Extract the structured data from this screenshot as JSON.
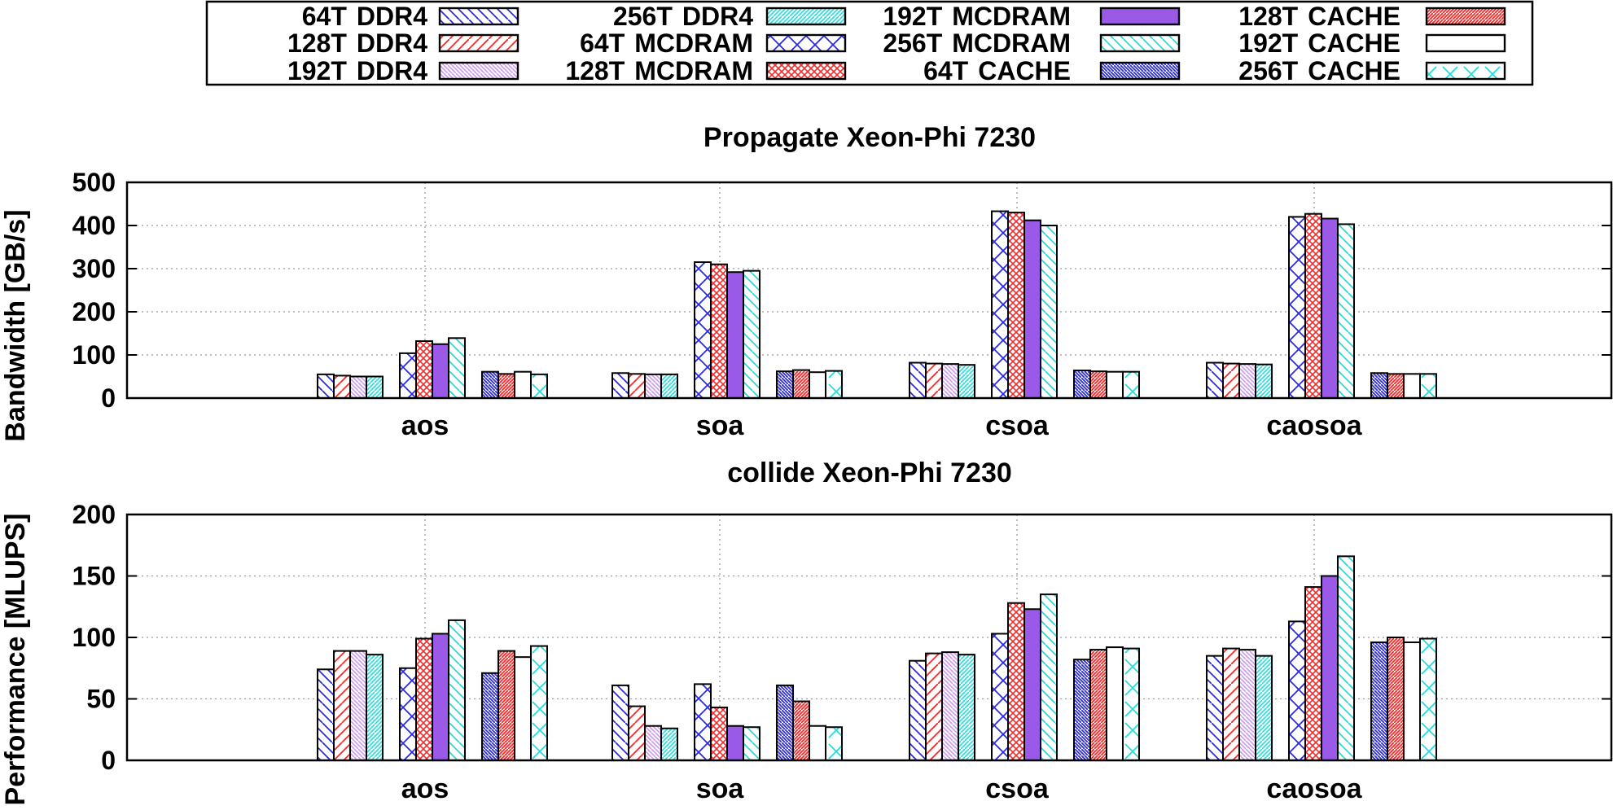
{
  "legend": [
    {
      "threads": "64T",
      "memory": "DDR4",
      "pattern": "diag-back",
      "color": "#2a2ae6",
      "fill": "#ffffff"
    },
    {
      "threads": "128T",
      "memory": "DDR4",
      "pattern": "diag-fwd",
      "color": "#ee2b2b",
      "fill": "#ffffff"
    },
    {
      "threads": "192T",
      "memory": "DDR4",
      "pattern": "diag-fine",
      "color": "#cc99ee",
      "fill": "#ffffff"
    },
    {
      "threads": "256T",
      "memory": "DDR4",
      "pattern": "diag-fine-fwd",
      "color": "#22dddd",
      "fill": "#ffffff"
    },
    {
      "threads": "64T",
      "memory": "MCDRAM",
      "pattern": "cross",
      "color": "#2a2ae6",
      "fill": "#ffffff"
    },
    {
      "threads": "128T",
      "memory": "MCDRAM",
      "pattern": "crosshatch-dense",
      "color": "#ee2b2b",
      "fill": "#ffffff"
    },
    {
      "threads": "192T",
      "memory": "MCDRAM",
      "pattern": "solid",
      "color": "#000000",
      "fill": "#9b59e8"
    },
    {
      "threads": "256T",
      "memory": "MCDRAM",
      "pattern": "diag-back",
      "color": "#22dddd",
      "fill": "#ffffff"
    },
    {
      "threads": "64T",
      "memory": "CACHE",
      "pattern": "diag-back-dense",
      "color": "#2a2ae6",
      "fill": "#ffffff"
    },
    {
      "threads": "128T",
      "memory": "CACHE",
      "pattern": "diag-fwd-dense",
      "color": "#ee2b2b",
      "fill": "#ffffff"
    },
    {
      "threads": "192T",
      "memory": "CACHE",
      "pattern": "none",
      "color": "#000000",
      "fill": "#ffffff"
    },
    {
      "threads": "256T",
      "memory": "CACHE",
      "pattern": "cross-sparse",
      "color": "#22dddd",
      "fill": "#ffffff"
    }
  ],
  "chart_data": [
    {
      "type": "bar",
      "title": "Propagate Xeon-Phi 7230",
      "xlabel": "",
      "ylabel": "Bandwidth [GB/s]",
      "ylim": [
        0,
        500
      ],
      "yticks": [
        0,
        100,
        200,
        300,
        400,
        500
      ],
      "grid": true,
      "categories": [
        "aos",
        "soa",
        "csoa",
        "caosoa"
      ],
      "series": [
        {
          "name": "64T DDR4",
          "values": [
            55,
            58,
            82,
            82
          ]
        },
        {
          "name": "128T DDR4",
          "values": [
            52,
            56,
            80,
            80
          ]
        },
        {
          "name": "192T DDR4",
          "values": [
            50,
            55,
            79,
            79
          ]
        },
        {
          "name": "256T DDR4",
          "values": [
            50,
            55,
            77,
            78
          ]
        },
        {
          "name": "64T MCDRAM",
          "values": [
            104,
            315,
            433,
            420
          ]
        },
        {
          "name": "128T MCDRAM",
          "values": [
            132,
            310,
            430,
            427
          ]
        },
        {
          "name": "192T MCDRAM",
          "values": [
            125,
            292,
            412,
            416
          ]
        },
        {
          "name": "256T MCDRAM",
          "values": [
            139,
            295,
            400,
            403
          ]
        },
        {
          "name": "64T CACHE",
          "values": [
            61,
            62,
            64,
            58
          ]
        },
        {
          "name": "128T CACHE",
          "values": [
            56,
            65,
            62,
            56
          ]
        },
        {
          "name": "192T CACHE",
          "values": [
            61,
            60,
            61,
            56
          ]
        },
        {
          "name": "256T CACHE",
          "values": [
            55,
            63,
            61,
            56
          ]
        }
      ]
    },
    {
      "type": "bar",
      "title": "collide Xeon-Phi 7230",
      "xlabel": "",
      "ylabel": "Performance [MLUPS]",
      "ylim": [
        0,
        200
      ],
      "yticks": [
        0,
        50,
        100,
        150,
        200
      ],
      "grid": true,
      "categories": [
        "aos",
        "soa",
        "csoa",
        "caosoa"
      ],
      "series": [
        {
          "name": "64T DDR4",
          "values": [
            74,
            61,
            81,
            85
          ]
        },
        {
          "name": "128T DDR4",
          "values": [
            89,
            44,
            87,
            91
          ]
        },
        {
          "name": "192T DDR4",
          "values": [
            89,
            28,
            88,
            90
          ]
        },
        {
          "name": "256T DDR4",
          "values": [
            86,
            26,
            86,
            85
          ]
        },
        {
          "name": "64T MCDRAM",
          "values": [
            75,
            62,
            103,
            113
          ]
        },
        {
          "name": "128T MCDRAM",
          "values": [
            99,
            43,
            128,
            141
          ]
        },
        {
          "name": "192T MCDRAM",
          "values": [
            103,
            28,
            123,
            150
          ]
        },
        {
          "name": "256T MCDRAM",
          "values": [
            114,
            27,
            135,
            166
          ]
        },
        {
          "name": "64T CACHE",
          "values": [
            71,
            61,
            82,
            96
          ]
        },
        {
          "name": "128T CACHE",
          "values": [
            89,
            48,
            90,
            100
          ]
        },
        {
          "name": "192T CACHE",
          "values": [
            84,
            28,
            92,
            96
          ]
        },
        {
          "name": "256T CACHE",
          "values": [
            93,
            27,
            91,
            99
          ]
        }
      ]
    }
  ]
}
